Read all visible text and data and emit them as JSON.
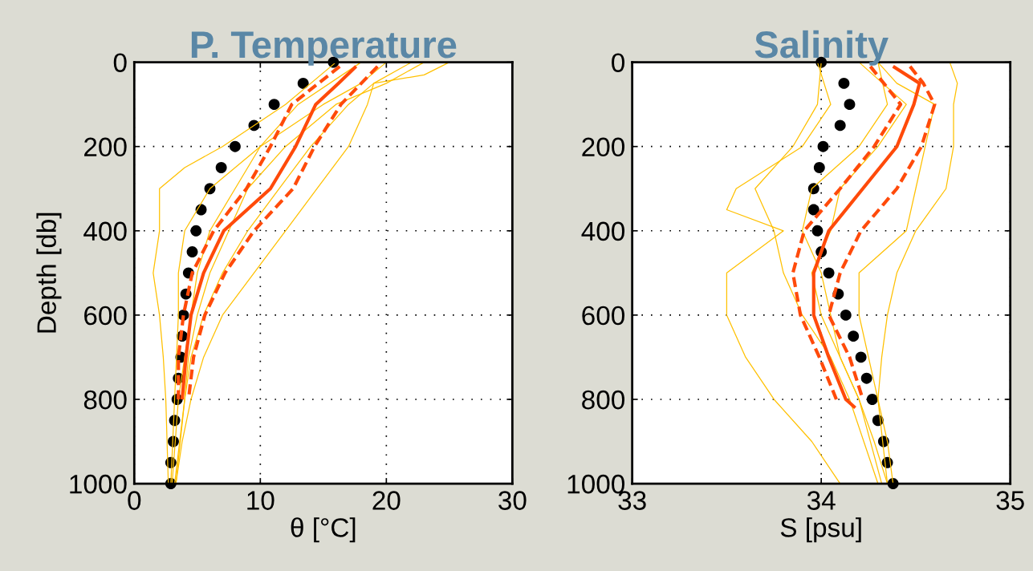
{
  "chart_data": [
    {
      "type": "line",
      "title": "P. Temperature",
      "xlabel": "θ [°C]",
      "ylabel": "Depth [db]",
      "xlim": [
        0,
        30
      ],
      "xticks": [
        0,
        10,
        20,
        30
      ],
      "ylim": [
        1000,
        0
      ],
      "yticks": [
        0,
        200,
        400,
        600,
        800,
        1000
      ],
      "grid": true,
      "series": [
        {
          "color": "#ffc000",
          "line_style": "solid",
          "marker": "none",
          "x": [
            25,
            23,
            19,
            18.5,
            17,
            14.5,
            12,
            9.5,
            7,
            5.5,
            4.5,
            3.8,
            3.3
          ],
          "values": [
            0,
            30,
            50,
            100,
            200,
            300,
            400,
            500,
            600,
            700,
            800,
            900,
            1000
          ]
        },
        {
          "color": "#ffc000",
          "line_style": "solid",
          "marker": "none",
          "x": [
            16,
            12,
            7,
            4,
            2,
            2,
            1.5,
            2,
            2.3,
            2.5,
            2.7
          ],
          "values": [
            0,
            100,
            200,
            250,
            300,
            400,
            500,
            600,
            700,
            800,
            1000
          ]
        },
        {
          "color": "#ffc000",
          "line_style": "solid",
          "marker": "none",
          "x": [
            20,
            18,
            15,
            10,
            8,
            6,
            5,
            4.5,
            4,
            3.5,
            3
          ],
          "values": [
            0,
            50,
            100,
            200,
            300,
            400,
            500,
            600,
            700,
            800,
            1000
          ]
        },
        {
          "color": "#ffc000",
          "line_style": "solid",
          "marker": "none",
          "x": [
            22,
            19,
            17,
            14,
            11.5,
            9,
            7,
            5.5,
            4.5,
            4,
            3.3
          ],
          "values": [
            0,
            50,
            100,
            200,
            300,
            400,
            500,
            600,
            700,
            800,
            1000
          ]
        },
        {
          "color": "#ffc000",
          "line_style": "solid",
          "marker": "none",
          "x": [
            18,
            13,
            10,
            6,
            4,
            3.5,
            3.5,
            3.2,
            2.9
          ],
          "values": [
            0,
            100,
            200,
            300,
            400,
            500,
            600,
            800,
            1000
          ]
        },
        {
          "color": "#ffc000",
          "line_style": "solid",
          "marker": "none",
          "x": [
            23,
            20,
            16,
            12,
            9,
            7.5,
            6,
            5,
            4.3,
            4,
            3.2
          ],
          "values": [
            0,
            50,
            100,
            200,
            300,
            400,
            500,
            600,
            700,
            800,
            1000
          ]
        },
        {
          "color": "#ff4a0a",
          "line_style": "dashed",
          "marker": "none",
          "x": [
            16.3,
            12.5,
            10.8,
            8.9,
            6.3,
            4.6,
            3.9,
            3.5,
            3.5
          ],
          "values": [
            10,
            100,
            200,
            300,
            400,
            500,
            600,
            700,
            800
          ]
        },
        {
          "color": "#ff4a0a",
          "line_style": "dashed",
          "marker": "none",
          "x": [
            19.3,
            16.4,
            14.3,
            12.6,
            9.5,
            7.2,
            5.6,
            4.7,
            4.3
          ],
          "values": [
            10,
            100,
            200,
            300,
            400,
            500,
            600,
            700,
            800
          ]
        },
        {
          "color": "#ff4a0a",
          "line_style": "solid",
          "marker": "none",
          "x": [
            17.6,
            16.2,
            14.4,
            12.8,
            10.8,
            7.1,
            5.5,
            4.5,
            4.1,
            3.8
          ],
          "values": [
            10,
            50,
            100,
            200,
            300,
            400,
            500,
            600,
            700,
            800
          ]
        },
        {
          "type": "scatter",
          "color": "#000000",
          "marker": "circle",
          "x": [
            15.8,
            13.4,
            11.1,
            9.5,
            8.0,
            6.9,
            6.0,
            5.3,
            4.9,
            4.6,
            4.3,
            4.1,
            3.9,
            3.8,
            3.7,
            3.5,
            3.4,
            3.2,
            3.1,
            2.9,
            2.9
          ],
          "values": [
            0,
            50,
            100,
            150,
            200,
            250,
            300,
            350,
            400,
            450,
            500,
            550,
            600,
            650,
            700,
            750,
            800,
            850,
            900,
            950,
            1000
          ]
        }
      ]
    },
    {
      "type": "line",
      "title": "Salinity",
      "xlabel": "S [psu]",
      "xlim": [
        33,
        35
      ],
      "xticks": [
        33,
        34,
        35
      ],
      "ylim": [
        1000,
        0
      ],
      "yticks": [
        0,
        200,
        400,
        600,
        800,
        1000
      ],
      "grid": true,
      "series": [
        {
          "color": "#ffc000",
          "line_style": "solid",
          "marker": "none",
          "x": [
            33.98,
            34.05,
            33.9,
            33.55,
            33.5,
            33.8,
            33.5,
            33.5,
            33.6,
            33.75,
            33.95,
            34.1
          ],
          "values": [
            0,
            100,
            200,
            300,
            350,
            400,
            500,
            600,
            700,
            800,
            900,
            1000
          ]
        },
        {
          "color": "#ffc000",
          "line_style": "solid",
          "marker": "none",
          "x": [
            34.68,
            34.72,
            34.7,
            34.7,
            34.66,
            34.5,
            34.4,
            34.35,
            34.32,
            34.3,
            34.35,
            34.38
          ],
          "values": [
            0,
            50,
            100,
            200,
            300,
            400,
            500,
            600,
            700,
            800,
            900,
            1000
          ]
        },
        {
          "color": "#ffc000",
          "line_style": "solid",
          "marker": "none",
          "x": [
            34.3,
            34.4,
            34.6,
            34.55,
            34.5,
            34.45,
            34.2,
            34.2,
            34.25,
            34.3,
            34.35
          ],
          "values": [
            0,
            50,
            100,
            200,
            300,
            400,
            500,
            600,
            700,
            800,
            1000
          ]
        },
        {
          "color": "#ffc000",
          "line_style": "solid",
          "marker": "none",
          "x": [
            34.0,
            33.98,
            33.85,
            33.65,
            33.75,
            33.8,
            33.9,
            34.05,
            34.15,
            34.3
          ],
          "values": [
            0,
            100,
            200,
            300,
            400,
            500,
            600,
            700,
            800,
            1000
          ]
        },
        {
          "color": "#ffc000",
          "line_style": "solid",
          "marker": "none",
          "x": [
            34.3,
            34.35,
            34.2,
            33.95,
            33.9,
            34.0,
            34.05,
            34.1,
            34.2,
            34.32
          ],
          "values": [
            0,
            100,
            200,
            300,
            400,
            500,
            600,
            700,
            800,
            1000
          ]
        },
        {
          "color": "#ffc000",
          "line_style": "solid",
          "marker": "none",
          "x": [
            34.2,
            34.45,
            34.3,
            34.1,
            34.05,
            33.95,
            34.0,
            34.1,
            34.2,
            34.28,
            34.35
          ],
          "values": [
            0,
            100,
            200,
            300,
            400,
            500,
            600,
            700,
            800,
            900,
            1000
          ]
        },
        {
          "color": "#ff4a0a",
          "line_style": "dashed",
          "marker": "none",
          "x": [
            34.26,
            34.42,
            34.28,
            34.1,
            33.91,
            33.85,
            33.89,
            33.99,
            34.08
          ],
          "values": [
            10,
            100,
            200,
            300,
            400,
            500,
            600,
            700,
            800
          ]
        },
        {
          "color": "#ff4a0a",
          "line_style": "dashed",
          "marker": "none",
          "x": [
            34.47,
            34.54,
            34.6,
            34.53,
            34.4,
            34.21,
            34.1,
            34.04,
            34.15,
            34.22
          ],
          "values": [
            10,
            50,
            100,
            200,
            300,
            400,
            500,
            600,
            700,
            800
          ]
        },
        {
          "color": "#ff4a0a",
          "line_style": "solid",
          "marker": "none",
          "x": [
            34.38,
            34.52,
            34.49,
            34.4,
            34.22,
            34.04,
            33.96,
            33.96,
            34.04,
            34.13,
            34.18
          ],
          "values": [
            10,
            50,
            100,
            200,
            300,
            400,
            500,
            600,
            700,
            800,
            820
          ]
        },
        {
          "type": "scatter",
          "color": "#000000",
          "marker": "circle",
          "x": [
            34.0,
            34.12,
            34.15,
            34.1,
            34.01,
            33.99,
            33.96,
            33.96,
            33.98,
            34.0,
            34.04,
            34.09,
            34.13,
            34.17,
            34.21,
            34.24,
            34.27,
            34.3,
            34.33,
            34.35,
            34.38
          ],
          "values": [
            0,
            50,
            100,
            150,
            200,
            250,
            300,
            350,
            400,
            450,
            500,
            550,
            600,
            650,
            700,
            750,
            800,
            850,
            900,
            950,
            1000
          ]
        }
      ]
    }
  ]
}
